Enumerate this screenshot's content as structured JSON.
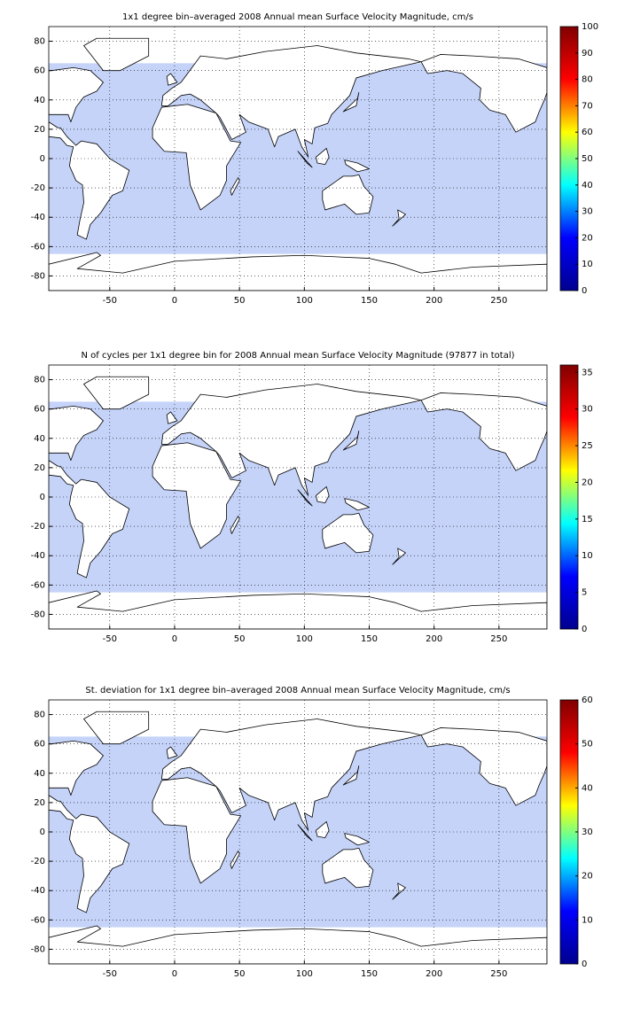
{
  "chart_data": [
    {
      "type": "heatmap",
      "title": "1x1 degree bin–averaged 2008 Annual mean Surface Velocity Magnitude, cm/s",
      "xlim": [
        -97,
        287
      ],
      "ylim": [
        -90,
        90
      ],
      "xticks": [
        -50,
        0,
        50,
        100,
        150,
        200,
        250
      ],
      "yticks": [
        -80,
        -60,
        -40,
        -20,
        0,
        20,
        40,
        60,
        80
      ],
      "grid": true,
      "colormap": "jet",
      "colorbar": {
        "lim": [
          0,
          100
        ],
        "ticks": [
          0,
          10,
          20,
          30,
          40,
          50,
          60,
          70,
          80,
          90,
          100
        ]
      }
    },
    {
      "type": "heatmap",
      "title": "N of cycles per 1x1 degree bin for 2008 Annual mean Surface Velocity Magnitude (97877 in total)",
      "xlim": [
        -97,
        287
      ],
      "ylim": [
        -90,
        90
      ],
      "xticks": [
        -50,
        0,
        50,
        100,
        150,
        200,
        250
      ],
      "yticks": [
        -80,
        -60,
        -40,
        -20,
        0,
        20,
        40,
        60,
        80
      ],
      "grid": true,
      "colormap": "jet",
      "colorbar": {
        "lim": [
          0,
          36
        ],
        "ticks": [
          0,
          5,
          10,
          15,
          20,
          25,
          30,
          35
        ]
      }
    },
    {
      "type": "heatmap",
      "title": "St. deviation for 1x1 degree bin–averaged 2008 Annual mean Surface Velocity Magnitude, cm/s",
      "xlim": [
        -97,
        287
      ],
      "ylim": [
        -90,
        90
      ],
      "xticks": [
        -50,
        0,
        50,
        100,
        150,
        200,
        250
      ],
      "yticks": [
        -80,
        -60,
        -40,
        -20,
        0,
        20,
        40,
        60,
        80
      ],
      "grid": true,
      "colormap": "jet",
      "colorbar": {
        "lim": [
          0,
          60
        ],
        "ticks": [
          0,
          10,
          20,
          30,
          40,
          50,
          60
        ]
      }
    }
  ]
}
